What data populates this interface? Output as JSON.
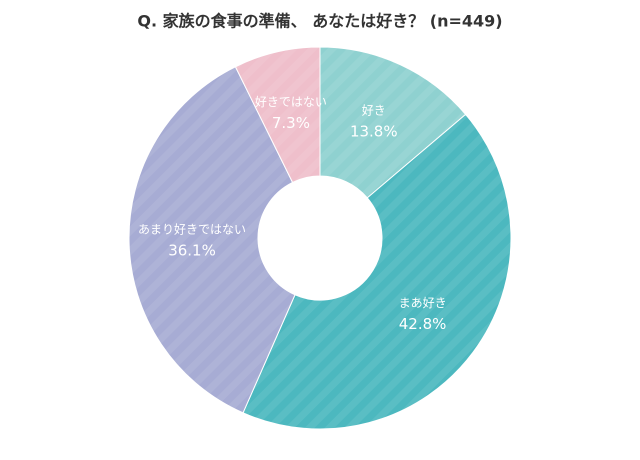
{
  "chart_data": {
    "type": "pie",
    "title": "Q. 家族の食事の準備、 あなたは好き？ (n=449)",
    "categories": [
      "好き",
      "まあ好き",
      "あまり好きではない",
      "好きではない"
    ],
    "values": [
      13.8,
      42.8,
      36.1,
      7.3
    ],
    "value_labels": [
      "13.8%",
      "42.8%",
      "36.1%",
      "7.3%"
    ],
    "colors": [
      "#8fd1d0",
      "#4cb8bf",
      "#a7acd4",
      "#efbfcb"
    ],
    "donut": true
  }
}
